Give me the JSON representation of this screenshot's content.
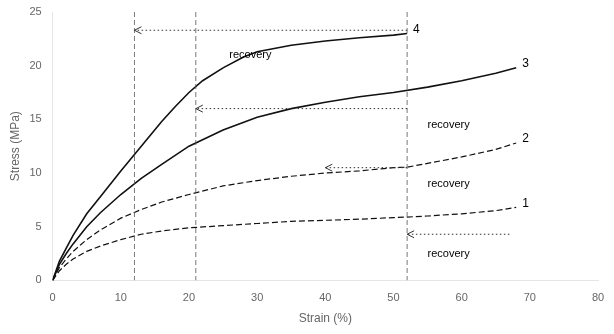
{
  "chart_data": {
    "type": "line",
    "xlabel": "Strain (%)",
    "ylabel": "Stress (MPa)",
    "xlim": [
      0,
      80
    ],
    "ylim": [
      0,
      25
    ],
    "xticks": [
      0,
      10,
      20,
      30,
      40,
      50,
      60,
      70,
      80
    ],
    "yticks": [
      0,
      5,
      10,
      15,
      20,
      25
    ],
    "grid": false,
    "legend": "none",
    "series": [
      {
        "name": "1",
        "color": "#111111",
        "line_style": "dashed",
        "x": [
          0,
          1,
          2,
          3,
          5,
          7,
          10,
          13,
          16,
          20,
          25,
          30,
          35,
          40,
          45,
          50,
          52,
          55,
          60,
          65,
          68
        ],
        "values": [
          0,
          0.9,
          1.5,
          2.0,
          2.7,
          3.2,
          3.8,
          4.3,
          4.6,
          4.9,
          5.1,
          5.3,
          5.5,
          5.6,
          5.7,
          5.85,
          5.9,
          6.0,
          6.2,
          6.5,
          6.8
        ]
      },
      {
        "name": "2",
        "color": "#111111",
        "line_style": "dashed",
        "x": [
          0,
          1,
          2,
          3,
          5,
          7,
          10,
          13,
          16,
          20,
          25,
          30,
          35,
          40,
          45,
          50,
          52,
          55,
          60,
          65,
          68
        ],
        "values": [
          0,
          1.2,
          2.0,
          2.7,
          3.8,
          4.7,
          5.8,
          6.6,
          7.3,
          8.0,
          8.8,
          9.3,
          9.7,
          10.0,
          10.2,
          10.5,
          10.55,
          10.9,
          11.5,
          12.2,
          12.8
        ]
      },
      {
        "name": "3",
        "color": "#111111",
        "line_style": "solid",
        "x": [
          0,
          1,
          2,
          3,
          5,
          7,
          10,
          13,
          16,
          20,
          25,
          30,
          35,
          40,
          45,
          50,
          55,
          60,
          65,
          68
        ],
        "values": [
          0,
          1.5,
          2.5,
          3.4,
          5.0,
          6.3,
          8.0,
          9.5,
          10.8,
          12.5,
          14.0,
          15.2,
          16.0,
          16.6,
          17.1,
          17.5,
          18.0,
          18.6,
          19.3,
          19.8
        ]
      },
      {
        "name": "4",
        "color": "#111111",
        "line_style": "solid",
        "x": [
          0,
          1,
          2,
          3,
          5,
          7,
          10,
          13,
          16,
          18,
          20,
          22,
          25,
          28,
          30,
          35,
          40,
          45,
          50,
          52
        ],
        "values": [
          0,
          1.8,
          3.0,
          4.2,
          6.2,
          7.8,
          10.2,
          12.5,
          14.8,
          16.2,
          17.5,
          18.6,
          19.8,
          20.8,
          21.3,
          21.9,
          22.3,
          22.6,
          22.85,
          23.0
        ]
      }
    ],
    "vlines": [
      12,
      21,
      52
    ],
    "vline_color": "#555555",
    "annotations": [
      {
        "text": "recovery",
        "x_from": 52,
        "x_to": 12,
        "y": 23.3,
        "text_x": 29,
        "text_y": 21.5,
        "align": "center"
      },
      {
        "text": "recovery",
        "x_from": 52,
        "x_to": 21,
        "y": 16.0,
        "text_x": 55,
        "text_y": 15.0,
        "align": "left"
      },
      {
        "text": "recovery",
        "x_from": 52,
        "x_to": 40,
        "y": 10.5,
        "text_x": 55,
        "text_y": 9.5,
        "align": "left"
      },
      {
        "text": "recovery",
        "x_from": 67,
        "x_to": 52,
        "y": 4.3,
        "text_x": 55,
        "text_y": 3.0,
        "align": "left"
      }
    ]
  }
}
